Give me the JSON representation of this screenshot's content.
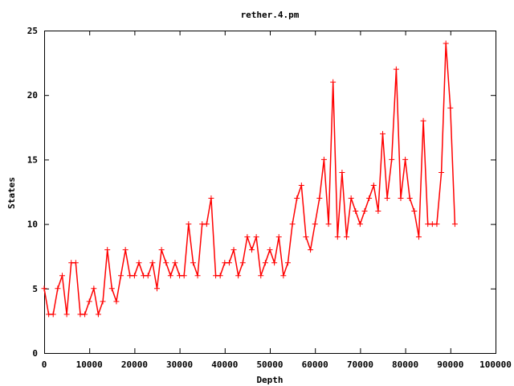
{
  "chart_data": {
    "type": "line",
    "title": "rether.4.pm",
    "xlabel": "Depth",
    "ylabel": "States",
    "xlim": [
      0,
      100000
    ],
    "ylim": [
      0,
      25
    ],
    "x_ticks": [
      0,
      10000,
      20000,
      30000,
      40000,
      50000,
      60000,
      70000,
      80000,
      90000,
      100000
    ],
    "x_tick_labels": [
      "0",
      "10000",
      "20000",
      "30000",
      "40000",
      "50000",
      "60000",
      "70000",
      "80000",
      "90000",
      "100000"
    ],
    "y_ticks": [
      0,
      5,
      10,
      15,
      20,
      25
    ],
    "y_tick_labels": [
      "0",
      "5",
      "10",
      "15",
      "20",
      "25"
    ],
    "grid": false,
    "legend": "none",
    "marker": "plus",
    "line_color": "#ff0000",
    "series": [
      {
        "x": [
          0,
          1000,
          2000,
          3000,
          4000,
          5000,
          6000,
          7000,
          8000,
          9000,
          10000,
          11000,
          12000,
          13000,
          14000,
          15000,
          16000,
          17000,
          18000,
          19000,
          20000,
          21000,
          22000,
          23000,
          24000,
          25000,
          26000,
          27000,
          28000,
          29000,
          30000,
          31000,
          32000,
          33000,
          34000,
          35000,
          36000,
          37000,
          38000,
          39000,
          40000,
          41000,
          42000,
          43000,
          44000,
          45000,
          46000,
          47000,
          48000,
          49000,
          50000,
          51000,
          52000,
          53000,
          54000,
          55000,
          56000,
          57000,
          58000,
          59000,
          60000,
          61000,
          62000,
          63000,
          64000,
          65000,
          66000,
          67000,
          68000,
          69000,
          70000,
          71000,
          72000,
          73000,
          74000,
          75000,
          76000,
          77000,
          78000,
          79000,
          80000,
          81000,
          82000,
          83000,
          84000,
          85000,
          86000,
          87000,
          88000,
          89000,
          90000,
          91000
        ],
        "y": [
          5,
          3,
          3,
          5,
          6,
          3,
          7,
          7,
          3,
          3,
          4,
          5,
          3,
          4,
          8,
          5,
          4,
          6,
          8,
          6,
          6,
          7,
          6,
          6,
          7,
          5,
          8,
          7,
          6,
          7,
          6,
          6,
          10,
          7,
          6,
          10,
          10,
          12,
          6,
          6,
          7,
          7,
          8,
          6,
          7,
          9,
          8,
          9,
          6,
          7,
          8,
          7,
          9,
          6,
          7,
          10,
          12,
          13,
          9,
          8,
          10,
          12,
          15,
          10,
          21,
          9,
          14,
          9,
          12,
          11,
          10,
          11,
          12,
          13,
          11,
          17,
          12,
          15,
          22,
          12,
          15,
          12,
          11,
          9,
          18,
          10,
          10,
          10,
          14,
          24,
          19,
          10
        ]
      }
    ]
  }
}
